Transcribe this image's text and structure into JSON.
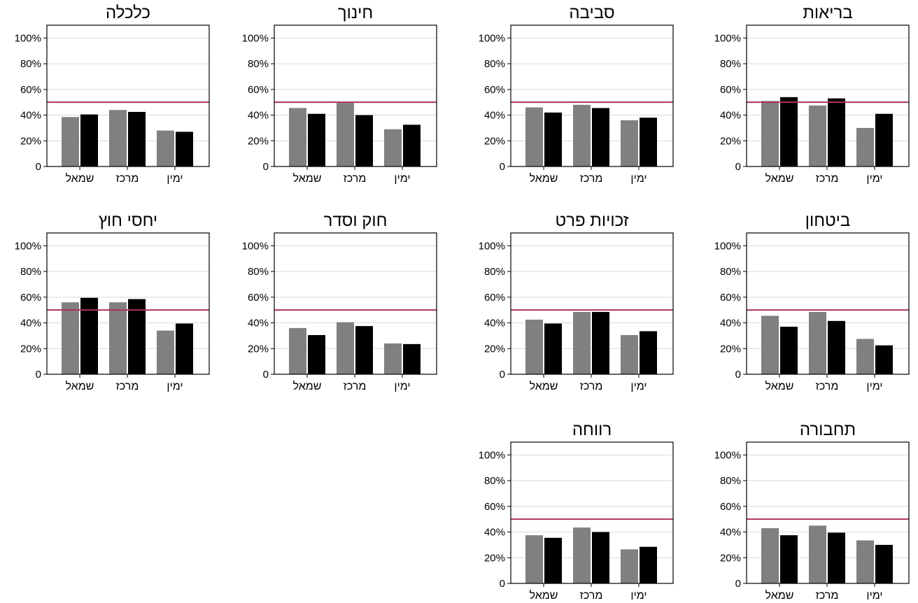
{
  "chart_data": [
    {
      "type": "bar",
      "title": "בריאות",
      "categories": [
        "שמאל",
        "מרכז",
        "ימין"
      ],
      "series": [
        {
          "values": [
            51,
            47.5,
            30
          ]
        },
        {
          "values": [
            54,
            53,
            41
          ]
        }
      ],
      "reference_line": 50,
      "ylim": [
        0,
        110
      ],
      "yticks": [
        "0",
        "20%",
        "40%",
        "60%",
        "80%",
        "100%"
      ]
    },
    {
      "type": "bar",
      "title": "סביבה",
      "categories": [
        "שמאל",
        "מרכז",
        "ימין"
      ],
      "series": [
        {
          "values": [
            46,
            48,
            36
          ]
        },
        {
          "values": [
            42,
            45.5,
            38
          ]
        }
      ],
      "reference_line": 50,
      "ylim": [
        0,
        110
      ],
      "yticks": [
        "0",
        "20%",
        "40%",
        "60%",
        "80%",
        "100%"
      ]
    },
    {
      "type": "bar",
      "title": "חינוך",
      "categories": [
        "שמאל",
        "מרכז",
        "ימין"
      ],
      "series": [
        {
          "values": [
            45.5,
            49.5,
            29
          ]
        },
        {
          "values": [
            41,
            40,
            32.5
          ]
        }
      ],
      "reference_line": 50,
      "ylim": [
        0,
        110
      ],
      "yticks": [
        "0",
        "20%",
        "40%",
        "60%",
        "80%",
        "100%"
      ]
    },
    {
      "type": "bar",
      "title": "כלכלה",
      "categories": [
        "שמאל",
        "מרכז",
        "ימין"
      ],
      "series": [
        {
          "values": [
            38.5,
            44,
            28
          ]
        },
        {
          "values": [
            40.5,
            42.5,
            27
          ]
        }
      ],
      "reference_line": 50,
      "ylim": [
        0,
        110
      ],
      "yticks": [
        "0",
        "20%",
        "40%",
        "60%",
        "80%",
        "100%"
      ]
    },
    {
      "type": "bar",
      "title": "ביטחון",
      "categories": [
        "שמאל",
        "מרכז",
        "ימין"
      ],
      "series": [
        {
          "values": [
            45.5,
            48.5,
            27.5
          ]
        },
        {
          "values": [
            37,
            41.5,
            22.5
          ]
        }
      ],
      "reference_line": 50,
      "ylim": [
        0,
        110
      ],
      "yticks": [
        "0",
        "20%",
        "40%",
        "60%",
        "80%",
        "100%"
      ]
    },
    {
      "type": "bar",
      "title": "זכויות פרט",
      "categories": [
        "שמאל",
        "מרכז",
        "ימין"
      ],
      "series": [
        {
          "values": [
            42.5,
            48.5,
            30.5
          ]
        },
        {
          "values": [
            39.5,
            48.5,
            33.5
          ]
        }
      ],
      "reference_line": 50,
      "ylim": [
        0,
        110
      ],
      "yticks": [
        "0",
        "20%",
        "40%",
        "60%",
        "80%",
        "100%"
      ]
    },
    {
      "type": "bar",
      "title": "חוק וסדר",
      "categories": [
        "שמאל",
        "מרכז",
        "ימין"
      ],
      "series": [
        {
          "values": [
            36,
            40.5,
            24
          ]
        },
        {
          "values": [
            30.5,
            37.5,
            23.5
          ]
        }
      ],
      "reference_line": 50,
      "ylim": [
        0,
        110
      ],
      "yticks": [
        "0",
        "20%",
        "40%",
        "60%",
        "80%",
        "100%"
      ]
    },
    {
      "type": "bar",
      "title": "יחסי חוץ",
      "categories": [
        "שמאל",
        "מרכז",
        "ימין"
      ],
      "series": [
        {
          "values": [
            56,
            56,
            34
          ]
        },
        {
          "values": [
            59.5,
            58.5,
            39.5
          ]
        }
      ],
      "reference_line": 50,
      "ylim": [
        0,
        110
      ],
      "yticks": [
        "0",
        "20%",
        "40%",
        "60%",
        "80%",
        "100%"
      ]
    },
    {
      "type": "bar",
      "title": "תחבורה",
      "categories": [
        "שמאל",
        "מרכז",
        "ימין"
      ],
      "series": [
        {
          "values": [
            43,
            45,
            33.5
          ]
        },
        {
          "values": [
            37.5,
            39.5,
            30
          ]
        }
      ],
      "reference_line": 50,
      "ylim": [
        0,
        110
      ],
      "yticks": [
        "0",
        "20%",
        "40%",
        "60%",
        "80%",
        "100%"
      ]
    },
    {
      "type": "bar",
      "title": "רווחה",
      "categories": [
        "שמאל",
        "מרכז",
        "ימין"
      ],
      "series": [
        {
          "values": [
            37.5,
            43.5,
            26.5
          ]
        },
        {
          "values": [
            35.5,
            40,
            28.5
          ]
        }
      ],
      "reference_line": 50,
      "ylim": [
        0,
        110
      ],
      "yticks": [
        "0",
        "20%",
        "40%",
        "60%",
        "80%",
        "100%"
      ]
    }
  ],
  "colors": {
    "series_1": "#808080",
    "series_2": "#000000",
    "reference_line": "#b03060",
    "grid": "#d9d9d9",
    "axis": "#000000"
  },
  "layout": {
    "panel_order": "right-to-left",
    "columns": 4,
    "grid": true
  }
}
